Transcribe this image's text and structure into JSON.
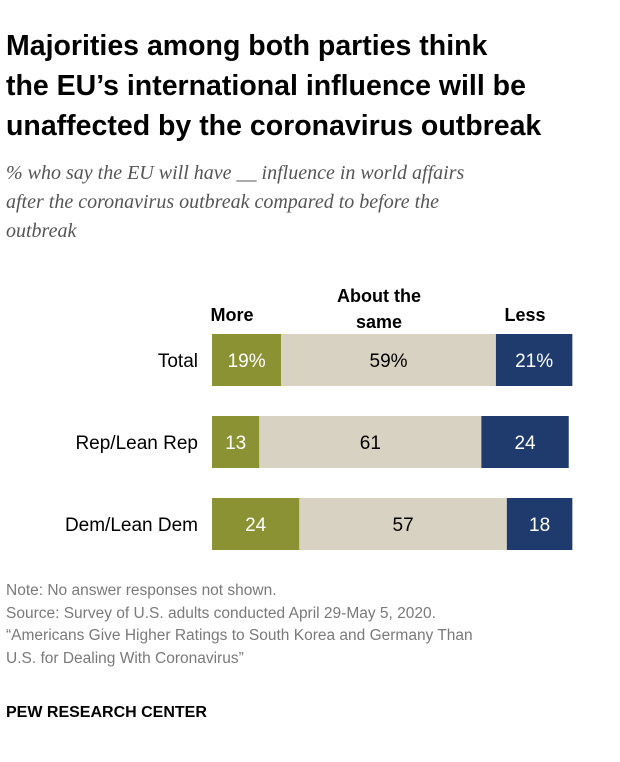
{
  "title_lines": [
    "Majorities among both parties think",
    "the EU’s international influence will be",
    "unaffected by the coronavirus outbreak"
  ],
  "subtitle_lines": [
    "% who say the EU will have __ influence in world affairs",
    "after the coronavirus outbreak compared to before the",
    "outbreak"
  ],
  "chart_data": {
    "type": "bar",
    "stacked": true,
    "orientation": "horizontal",
    "categories": [
      "Total",
      "Rep/Lean Rep",
      "Dem/Lean Dem"
    ],
    "series": [
      {
        "name": "More",
        "values": [
          19,
          13,
          24
        ],
        "labels": [
          "19%",
          "13",
          "24"
        ],
        "color": "#8a9234",
        "text_color": "#ffffff"
      },
      {
        "name": "About the same",
        "values": [
          59,
          61,
          57
        ],
        "labels": [
          "59%",
          "61",
          "57"
        ],
        "color": "#d8d2c2",
        "text_color": "#000000"
      },
      {
        "name": "Less",
        "values": [
          21,
          24,
          18
        ],
        "labels": [
          "21%",
          "24",
          "18"
        ],
        "color": "#1f3b6e",
        "text_color": "#ffffff"
      }
    ],
    "legend_position": "top",
    "grid": false
  },
  "notes": [
    "Note: No answer responses not shown.",
    "Source: Survey of U.S. adults conducted April 29-May 5, 2020.",
    "“Americans Give Higher Ratings to South Korea and Germany Than",
    "U.S. for Dealing With Coronavirus”"
  ],
  "brand": "PEW RESEARCH CENTER"
}
